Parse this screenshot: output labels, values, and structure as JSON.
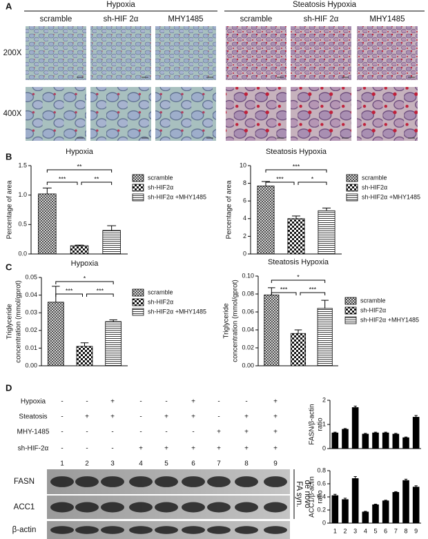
{
  "panel_labels": [
    "A",
    "B",
    "C",
    "D"
  ],
  "micrograph": {
    "groups": [
      "Hypoxia",
      "Steatosis Hypoxia"
    ],
    "columns": [
      "scramble",
      "sh-HIF 2α",
      "MHY1485",
      "scramble",
      "sh-HIF 2α",
      "MHY1485"
    ],
    "rows": [
      "200X",
      "400X"
    ]
  },
  "chart_data": [
    {
      "type": "bar",
      "title": "Hypoxia",
      "y_label": [
        "Percentage of area"
      ],
      "ylim": [
        0,
        1.5
      ],
      "yticks": [
        {
          "value": 0,
          "label": "0.0"
        },
        0.5,
        {
          "value": 1,
          "label": "1.0"
        },
        1.5
      ],
      "series": [
        {
          "name": "scramble",
          "pattern": "crosshatch",
          "values": [
            1.02
          ],
          "errors": [
            0.1
          ]
        },
        {
          "name": "sh-HIF2α",
          "pattern": "checker",
          "values": [
            0.14
          ],
          "errors": [
            0.01
          ]
        },
        {
          "name": "sh-HIF2α +MHY1485",
          "pattern": "hlines",
          "values": [
            0.4
          ],
          "errors": [
            0.08
          ]
        }
      ],
      "annotations": [
        {
          "text": "**",
          "from": 0,
          "to": 2
        },
        {
          "text": "***",
          "from": 0,
          "to": 1
        },
        {
          "text": "**",
          "from": 1,
          "to": 2
        }
      ]
    },
    {
      "type": "bar",
      "title": "Steatosis Hypoxia",
      "y_label": [
        "Percentage of area"
      ],
      "ylim": [
        0,
        10
      ],
      "yticks": [
        0,
        2,
        4,
        6,
        8,
        10
      ],
      "series": [
        {
          "name": "scramble",
          "pattern": "crosshatch",
          "values": [
            7.7
          ],
          "errors": [
            0.5
          ]
        },
        {
          "name": "sh-HIF2α",
          "pattern": "checker",
          "values": [
            4.0
          ],
          "errors": [
            0.3
          ]
        },
        {
          "name": "sh-HIF2α +MHY1485",
          "pattern": "hlines",
          "values": [
            4.9
          ],
          "errors": [
            0.3
          ]
        }
      ],
      "annotations": [
        {
          "text": "***",
          "from": 0,
          "to": 2
        },
        {
          "text": "***",
          "from": 0,
          "to": 1
        },
        {
          "text": "*",
          "from": 1,
          "to": 2
        }
      ]
    },
    {
      "type": "bar",
      "title": "Hypoxia",
      "y_label": [
        "Triglyceride",
        "concentration (mmol/gprot)"
      ],
      "ylim": [
        0,
        0.05
      ],
      "yticks": [
        {
          "value": 0,
          "label": "0.00"
        },
        0.01,
        0.02,
        0.03,
        0.04,
        0.05
      ],
      "series": [
        {
          "name": "scramble",
          "pattern": "crosshatch",
          "values": [
            0.036
          ],
          "errors": [
            0.009
          ]
        },
        {
          "name": "sh-HIF2α",
          "pattern": "checker",
          "values": [
            0.011
          ],
          "errors": [
            0.002
          ]
        },
        {
          "name": "sh-HIF2α +MHY1485",
          "pattern": "hlines",
          "values": [
            0.025
          ],
          "errors": [
            0.001
          ]
        }
      ],
      "annotations": [
        {
          "text": "*",
          "from": 0,
          "to": 2
        },
        {
          "text": "***",
          "from": 0,
          "to": 1
        },
        {
          "text": "***",
          "from": 1,
          "to": 2
        }
      ]
    },
    {
      "type": "bar",
      "title": "Steatosis Hypoxia",
      "y_label": [
        "Triglyceride",
        "concentration (mmol/gprot)"
      ],
      "ylim": [
        0,
        0.1
      ],
      "yticks": [
        {
          "value": 0,
          "label": "0.00"
        },
        0.02,
        0.04,
        0.06,
        0.08,
        {
          "value": 0.1,
          "label": "0.10"
        }
      ],
      "series": [
        {
          "name": "scramble",
          "pattern": "crosshatch",
          "values": [
            0.079
          ],
          "errors": [
            0.008
          ]
        },
        {
          "name": "sh-HIF2α",
          "pattern": "checker",
          "values": [
            0.036
          ],
          "errors": [
            0.004
          ]
        },
        {
          "name": "sh-HIF2α +MHY1485",
          "pattern": "hlines",
          "values": [
            0.064
          ],
          "errors": [
            0.009
          ]
        }
      ],
      "annotations": [
        {
          "text": "*",
          "from": 0,
          "to": 2
        },
        {
          "text": "***",
          "from": 0,
          "to": 1
        },
        {
          "text": "***",
          "from": 1,
          "to": 2
        }
      ]
    },
    {
      "type": "bar",
      "y_label": [
        "FASN/β-actin",
        "ratio"
      ],
      "color": "#000000",
      "ylim": [
        0,
        2
      ],
      "yticks": [
        0,
        1,
        2
      ],
      "values": [
        0.65,
        0.8,
        1.7,
        0.6,
        0.65,
        0.65,
        0.6,
        0.45,
        1.3
      ],
      "errors": [
        0.03,
        0.03,
        0.06,
        0.03,
        0.03,
        0.03,
        0.03,
        0.03,
        0.07
      ]
    },
    {
      "type": "bar",
      "y_label": [
        "ACC1/β-actin",
        "ratio"
      ],
      "color": "#000000",
      "ylim": [
        0,
        0.8
      ],
      "yticks": [
        0,
        0.2,
        0.4,
        0.6,
        0.8
      ],
      "categories": [
        "1",
        "2",
        "3",
        "4",
        "5",
        "6",
        "7",
        "8",
        "9"
      ],
      "values": [
        0.42,
        0.36,
        0.68,
        0.17,
        0.28,
        0.34,
        0.47,
        0.65,
        0.55
      ],
      "errors": [
        0.02,
        0.02,
        0.03,
        0.01,
        0.01,
        0.01,
        0.01,
        0.02,
        0.02
      ]
    }
  ],
  "blot": {
    "conditions": [
      {
        "name": "Hypoxia",
        "signs": [
          "-",
          "-",
          "+",
          "-",
          "-",
          "+",
          "-",
          "-",
          "+"
        ]
      },
      {
        "name": "Steatosis",
        "signs": [
          "-",
          "+",
          "+",
          "-",
          "+",
          "+",
          "-",
          "+",
          "+"
        ]
      },
      {
        "name": "MHY-1485",
        "signs": [
          "-",
          "-",
          "-",
          "-",
          "-",
          "-",
          "+",
          "+",
          "+"
        ]
      },
      {
        "name": "sh-HIF-2α",
        "signs": [
          "-",
          "-",
          "-",
          "+",
          "+",
          "+",
          "+",
          "+",
          "+"
        ]
      }
    ],
    "lanes": [
      "1",
      "2",
      "3",
      "4",
      "5",
      "6",
      "7",
      "8",
      "9"
    ],
    "proteins": [
      "FASN",
      "ACC1",
      "β-actin"
    ],
    "group_label": [
      "de novo",
      "FA syn."
    ]
  }
}
